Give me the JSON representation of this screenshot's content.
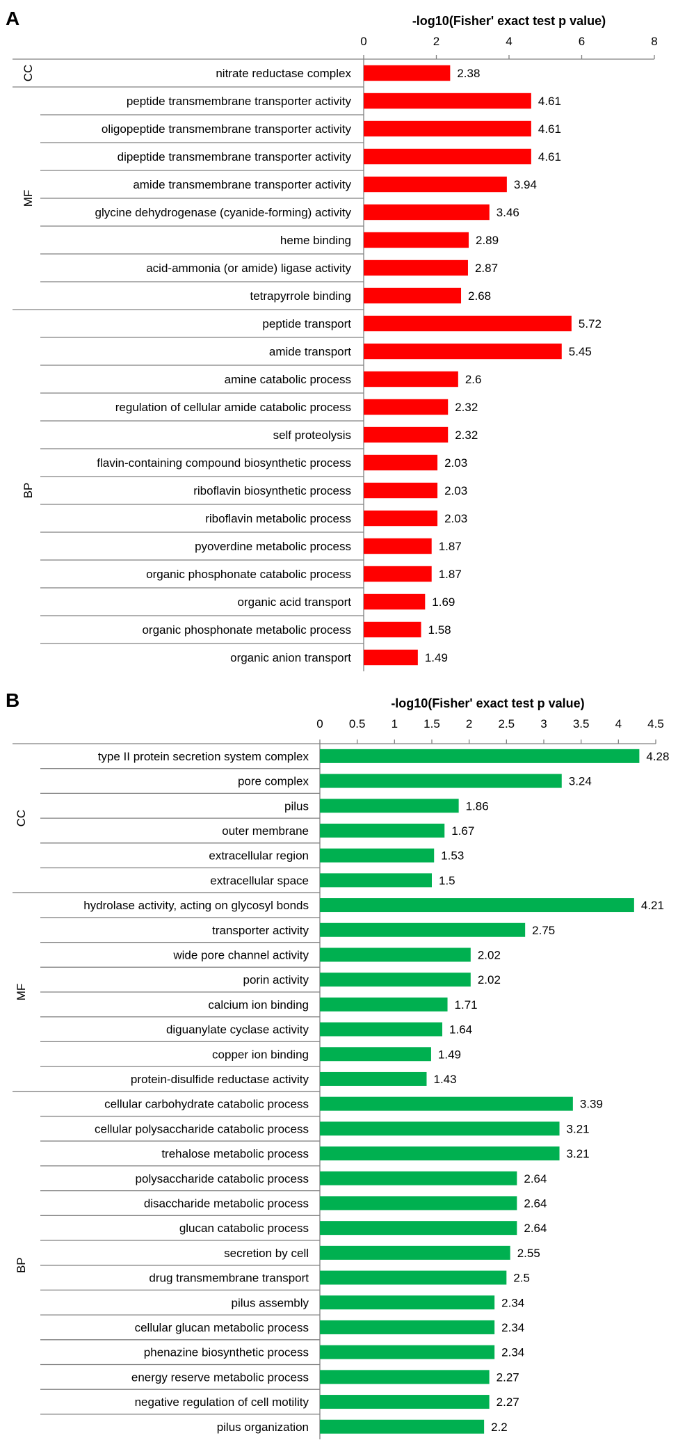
{
  "chart_data": [
    {
      "type": "bar",
      "orientation": "horizontal",
      "panel": "A",
      "title": "-log10(Fisher' exact test p value)",
      "xlim": [
        0,
        8
      ],
      "ticks": [
        "0",
        "2",
        "4",
        "6",
        "8"
      ],
      "tick_values": [
        0,
        2,
        4,
        6,
        8
      ],
      "color": "#ff0000",
      "groups": [
        {
          "name": "CC",
          "count": 1
        },
        {
          "name": "MF",
          "count": 8
        },
        {
          "name": "BP",
          "count": 13
        }
      ],
      "categories": [
        "nitrate reductase complex",
        "peptide transmembrane transporter activity",
        "oligopeptide transmembrane transporter activity",
        "dipeptide transmembrane transporter activity",
        "amide transmembrane transporter activity",
        "glycine dehydrogenase (cyanide-forming) activity",
        "heme binding",
        "acid-ammonia (or amide) ligase activity",
        "tetrapyrrole binding",
        "peptide transport",
        "amide transport",
        "amine catabolic process",
        "regulation of cellular amide catabolic process",
        "self proteolysis",
        "flavin-containing compound biosynthetic process",
        "riboflavin biosynthetic process",
        "riboflavin metabolic process",
        "pyoverdine metabolic process",
        "organic phosphonate catabolic process",
        "organic acid transport",
        "organic phosphonate metabolic process",
        "organic anion transport"
      ],
      "values": [
        2.38,
        4.61,
        4.61,
        4.61,
        3.94,
        3.46,
        2.89,
        2.87,
        2.68,
        5.72,
        5.45,
        2.6,
        2.32,
        2.32,
        2.03,
        2.03,
        2.03,
        1.87,
        1.87,
        1.69,
        1.58,
        1.49
      ],
      "value_labels": [
        "2.38",
        "4.61",
        "4.61",
        "4.61",
        "3.94",
        "3.46",
        "2.89",
        "2.87",
        "2.68",
        "5.72",
        "5.45",
        "2.6",
        "2.32",
        "2.32",
        "2.03",
        "2.03",
        "2.03",
        "1.87",
        "1.87",
        "1.69",
        "1.58",
        "1.49"
      ]
    },
    {
      "type": "bar",
      "orientation": "horizontal",
      "panel": "B",
      "title": "-log10(Fisher' exact test p value)",
      "xlim": [
        0,
        4.5
      ],
      "ticks": [
        "0",
        "0.5",
        "1",
        "1.5",
        "2",
        "2.5",
        "3",
        "3.5",
        "4",
        "4.5"
      ],
      "tick_values": [
        0,
        0.5,
        1,
        1.5,
        2,
        2.5,
        3,
        3.5,
        4,
        4.5
      ],
      "color": "#00b050",
      "groups": [
        {
          "name": "CC",
          "count": 6
        },
        {
          "name": "MF",
          "count": 8
        },
        {
          "name": "BP",
          "count": 14
        }
      ],
      "categories": [
        "type II protein secretion system complex",
        "pore complex",
        "pilus",
        "outer membrane",
        "extracellular region",
        "extracellular space",
        "hydrolase activity, acting on glycosyl bonds",
        "transporter activity",
        "wide pore channel activity",
        "porin activity",
        "calcium ion binding",
        "diguanylate cyclase activity",
        "copper ion binding",
        "protein-disulfide reductase activity",
        "cellular carbohydrate catabolic process",
        "cellular polysaccharide catabolic process",
        "trehalose metabolic process",
        "polysaccharide catabolic process",
        "disaccharide metabolic process",
        "glucan catabolic process",
        "secretion by cell",
        "drug transmembrane transport",
        "pilus assembly",
        "cellular glucan metabolic process",
        "phenazine biosynthetic process",
        "energy reserve metabolic process",
        "negative regulation of cell motility",
        "pilus organization"
      ],
      "values": [
        4.28,
        3.24,
        1.86,
        1.67,
        1.53,
        1.5,
        4.21,
        2.75,
        2.02,
        2.02,
        1.71,
        1.64,
        1.49,
        1.43,
        3.39,
        3.21,
        3.21,
        2.64,
        2.64,
        2.64,
        2.55,
        2.5,
        2.34,
        2.34,
        2.34,
        2.27,
        2.27,
        2.2
      ],
      "value_labels": [
        "4.28",
        "3.24",
        "1.86",
        "1.67",
        "1.53",
        "1.5",
        "4.21",
        "2.75",
        "2.02",
        "2.02",
        "1.71",
        "1.64",
        "1.49",
        "1.43",
        "3.39",
        "3.21",
        "3.21",
        "2.64",
        "2.64",
        "2.64",
        "2.55",
        "2.5",
        "2.34",
        "2.34",
        "2.34",
        "2.27",
        "2.27",
        "2.2"
      ]
    }
  ]
}
